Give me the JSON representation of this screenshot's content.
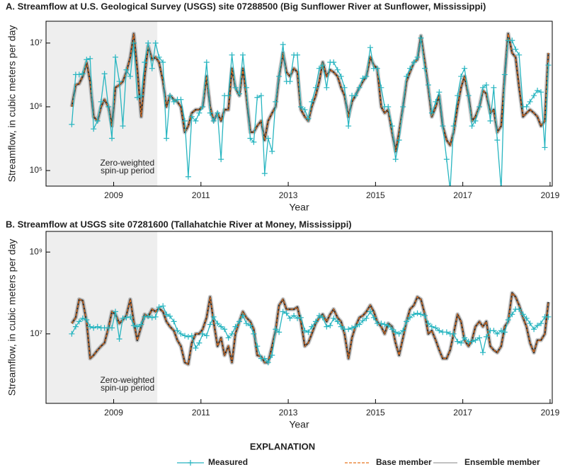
{
  "chart_data": [
    {
      "type": "line",
      "title": "A. Streamflow at U.S. Geological Survey (USGS) site 07288500 (Big Sunflower River at Sunflower, Mississippi)",
      "xlabel": "Year",
      "ylabel": "Streamflow, in cubic meters per day",
      "log_y": true,
      "xlim": [
        2007.45,
        2019.05
      ],
      "xticks": [
        2009,
        2011,
        2013,
        2015,
        2017,
        2019
      ],
      "ylim": [
        57000,
        22000000
      ],
      "yticks": [
        {
          "value": 100000,
          "label": "10⁵"
        },
        {
          "value": 1000000,
          "label": "10⁶"
        },
        {
          "value": 10000000,
          "label": "10⁷"
        }
      ],
      "shaded": {
        "xlim": [
          2007.45,
          2010
        ],
        "label": [
          "Zero-weighted",
          "spin-up period"
        ]
      },
      "x": [
        2008.04,
        2008.13,
        2008.21,
        2008.29,
        2008.38,
        2008.46,
        2008.54,
        2008.63,
        2008.71,
        2008.79,
        2008.88,
        2008.96,
        2009.04,
        2009.13,
        2009.21,
        2009.29,
        2009.38,
        2009.46,
        2009.54,
        2009.63,
        2009.71,
        2009.79,
        2009.88,
        2009.96,
        2010.04,
        2010.13,
        2010.21,
        2010.29,
        2010.38,
        2010.46,
        2010.54,
        2010.63,
        2010.71,
        2010.79,
        2010.88,
        2010.96,
        2011.04,
        2011.13,
        2011.21,
        2011.29,
        2011.38,
        2011.46,
        2011.54,
        2011.63,
        2011.71,
        2011.79,
        2011.88,
        2011.96,
        2012.04,
        2012.13,
        2012.21,
        2012.29,
        2012.38,
        2012.46,
        2012.54,
        2012.63,
        2012.71,
        2012.79,
        2012.88,
        2012.96,
        2013.04,
        2013.13,
        2013.21,
        2013.29,
        2013.38,
        2013.46,
        2013.54,
        2013.63,
        2013.71,
        2013.79,
        2013.88,
        2013.96,
        2014.04,
        2014.13,
        2014.21,
        2014.29,
        2014.38,
        2014.46,
        2014.54,
        2014.63,
        2014.71,
        2014.79,
        2014.88,
        2014.96,
        2015.04,
        2015.13,
        2015.21,
        2015.29,
        2015.38,
        2015.46,
        2015.54,
        2015.63,
        2015.71,
        2015.79,
        2015.88,
        2015.96,
        2016.04,
        2016.13,
        2016.21,
        2016.29,
        2016.38,
        2016.46,
        2016.54,
        2016.63,
        2016.71,
        2016.79,
        2016.88,
        2016.96,
        2017.04,
        2017.13,
        2017.21,
        2017.29,
        2017.38,
        2017.46,
        2017.54,
        2017.63,
        2017.71,
        2017.79,
        2017.88,
        2017.96,
        2018.04,
        2018.13,
        2018.21,
        2018.29,
        2018.38,
        2018.46,
        2018.54,
        2018.63,
        2018.71,
        2018.79,
        2018.88,
        2018.96
      ],
      "series": [
        {
          "values": [
            530000.0,
            3200000.0,
            3200000.0,
            3300000.0,
            5500000.0,
            5700000.0,
            450000.0,
            600000.0,
            1200000.0,
            3300000.0,
            1000000.0,
            320000.0,
            6000000.0,
            2500000.0,
            500000.0,
            3800000.0,
            3000000.0,
            10000000.0,
            1400000.0,
            1500000.0,
            5000000.0,
            10000000.0,
            4000000.0,
            10000000.0,
            6000000.0,
            5000000.0,
            320000.0,
            1500000.0,
            1200000.0,
            1300000.0,
            1300000.0,
            600000.0,
            80000.0,
            700000.0,
            600000.0,
            800000.0,
            1000000.0,
            5000000.0,
            800000.0,
            600000.0,
            800000.0,
            150000.0,
            1500000.0,
            1500000.0,
            6500000.0,
            2000000.0,
            1600000.0,
            6500000.0,
            2000000.0,
            320000.0,
            280000.0,
            1400000.0,
            1500000.0,
            90000.0,
            320000.0,
            200000.0,
            1200000.0,
            3000000.0,
            9500000.0,
            2500000.0,
            2500000.0,
            6500000.0,
            6500000.0,
            1000000.0,
            900000.0,
            650000.0,
            1200000.0,
            2000000.0,
            4000000.0,
            4500000.0,
            2000000.0,
            5000000.0,
            5000000.0,
            3800000.0,
            3000000.0,
            2000000.0,
            500000.0,
            1500000.0,
            1500000.0,
            2000000.0,
            2800000.0,
            3000000.0,
            8500000.0,
            4000000.0,
            4000000.0,
            2000000.0,
            1000000.0,
            1000000.0,
            500000.0,
            150000.0,
            300000.0,
            1000000.0,
            3000000.0,
            4000000.0,
            5000000.0,
            6000000.0,
            12000000.0,
            4000000.0,
            2200000.0,
            800000.0,
            1200000.0,
            1700000.0,
            500000.0,
            150000.0,
            50000.0,
            500000.0,
            1500000.0,
            3000000.0,
            4000000.0,
            1500000.0,
            500000.0,
            600000.0,
            1000000.0,
            2000000.0,
            2200000.0,
            600000.0,
            2000000.0,
            300000.0,
            50000.0,
            3200000.0,
            11000000.0,
            11000000.0,
            8000000.0,
            6500000.0,
            1000000.0,
            1000000.0,
            1200000.0,
            1500000.0,
            1800000.0,
            1700000.0,
            230000.0,
            4500000.0
          ]
        },
        {
          "values": [
            1000000.0,
            2200000.0,
            2300000.0,
            3000000.0,
            5000000.0,
            2500000.0,
            700000.0,
            600000.0,
            1000000.0,
            1300000.0,
            1000000.0,
            500000.0,
            2000000.0,
            2200000.0,
            2500000.0,
            3500000.0,
            6000000.0,
            14000000.0,
            4000000.0,
            700000.0,
            3000000.0,
            9000000.0,
            5500000.0,
            6000000.0,
            5000000.0,
            2500000.0,
            1000000.0,
            1500000.0,
            1300000.0,
            1200000.0,
            1000000.0,
            400000.0,
            500000.0,
            800000.0,
            900000.0,
            900000.0,
            1000000.0,
            3000000.0,
            1000000.0,
            600000.0,
            800000.0,
            600000.0,
            900000.0,
            900000.0,
            4000000.0,
            2000000.0,
            1500000.0,
            4000000.0,
            1500000.0,
            400000.0,
            400000.0,
            500000.0,
            600000.0,
            300000.0,
            600000.0,
            800000.0,
            1000000.0,
            3000000.0,
            7000000.0,
            3500000.0,
            3000000.0,
            4000000.0,
            3500000.0,
            900000.0,
            700000.0,
            600000.0,
            1000000.0,
            1500000.0,
            2500000.0,
            5000000.0,
            3000000.0,
            3800000.0,
            3500000.0,
            3000000.0,
            2000000.0,
            1500000.0,
            700000.0,
            1200000.0,
            1500000.0,
            2000000.0,
            2500000.0,
            3000000.0,
            6000000.0,
            4500000.0,
            4000000.0,
            1000000.0,
            800000.0,
            900000.0,
            400000.0,
            200000.0,
            400000.0,
            1000000.0,
            2500000.0,
            3500000.0,
            5000000.0,
            5500000.0,
            13000000.0,
            5000000.0,
            2000000.0,
            700000.0,
            1000000.0,
            1500000.0,
            500000.0,
            300000.0,
            250000.0,
            400000.0,
            1000000.0,
            2000000.0,
            3000000.0,
            1500000.0,
            600000.0,
            700000.0,
            1000000.0,
            1800000.0,
            1600000.0,
            800000.0,
            900000.0,
            400000.0,
            500000.0,
            3000000.0,
            14000000.0,
            7000000.0,
            6000000.0,
            2000000.0,
            700000.0,
            800000.0,
            900000.0,
            800000.0,
            700000.0,
            500000.0,
            600000.0,
            7000000.0
          ]
        }
      ]
    },
    {
      "type": "line",
      "title": "B. Streamflow at USGS site 07281600 (Tallahatchie River at Money, Mississippi)",
      "xlabel": "Year",
      "ylabel": "Streamflow, in cubic meters per day",
      "log_y": true,
      "xlim": [
        2007.45,
        2019.05
      ],
      "xticks": [
        2009,
        2011,
        2013,
        2015,
        2017,
        2019
      ],
      "ylim": [
        200000,
        3200000000
      ],
      "yticks": [
        {
          "value": 10000000,
          "label": "10⁷"
        },
        {
          "value": 1000000000,
          "label": "10⁹"
        }
      ],
      "shaded": {
        "xlim": [
          2007.45,
          2010
        ],
        "label": [
          "Zero-weighted",
          "spin-up period"
        ]
      },
      "x": [
        2008.04,
        2008.13,
        2008.21,
        2008.29,
        2008.38,
        2008.46,
        2008.54,
        2008.63,
        2008.71,
        2008.79,
        2008.88,
        2008.96,
        2009.04,
        2009.13,
        2009.21,
        2009.29,
        2009.38,
        2009.46,
        2009.54,
        2009.63,
        2009.71,
        2009.79,
        2009.88,
        2009.96,
        2010.04,
        2010.13,
        2010.21,
        2010.29,
        2010.38,
        2010.46,
        2010.54,
        2010.63,
        2010.71,
        2010.79,
        2010.88,
        2010.96,
        2011.04,
        2011.13,
        2011.21,
        2011.29,
        2011.38,
        2011.46,
        2011.54,
        2011.63,
        2011.71,
        2011.79,
        2011.88,
        2011.96,
        2012.04,
        2012.13,
        2012.21,
        2012.29,
        2012.38,
        2012.46,
        2012.54,
        2012.63,
        2012.71,
        2012.79,
        2012.88,
        2012.96,
        2013.04,
        2013.13,
        2013.21,
        2013.29,
        2013.38,
        2013.46,
        2013.54,
        2013.63,
        2013.71,
        2013.79,
        2013.88,
        2013.96,
        2014.04,
        2014.13,
        2014.21,
        2014.29,
        2014.38,
        2014.46,
        2014.54,
        2014.63,
        2014.71,
        2014.79,
        2014.88,
        2014.96,
        2015.04,
        2015.13,
        2015.21,
        2015.29,
        2015.38,
        2015.46,
        2015.54,
        2015.63,
        2015.71,
        2015.79,
        2015.88,
        2015.96,
        2016.04,
        2016.13,
        2016.21,
        2016.29,
        2016.38,
        2016.46,
        2016.54,
        2016.63,
        2016.71,
        2016.79,
        2016.88,
        2016.96,
        2017.04,
        2017.13,
        2017.21,
        2017.29,
        2017.38,
        2017.46,
        2017.54,
        2017.63,
        2017.71,
        2017.79,
        2017.88,
        2017.96,
        2018.04,
        2018.13,
        2018.21,
        2018.29,
        2018.38,
        2018.46,
        2018.54,
        2018.63,
        2018.71,
        2018.79,
        2018.88,
        2018.96
      ],
      "series": [
        {
          "values": [
            10000000.0,
            15000000.0,
            20000000.0,
            24000000.0,
            22000000.0,
            15000000.0,
            14000000.0,
            15000000.0,
            14000000.0,
            14000000.0,
            14000000.0,
            14000000.0,
            35000000.0,
            7500000.0,
            24000000.0,
            25000000.0,
            26000000.0,
            16000000.0,
            15000000.0,
            17000000.0,
            26000000.0,
            27000000.0,
            25000000.0,
            26000000.0,
            45000000.0,
            48000000.0,
            30000000.0,
            27000000.0,
            20000000.0,
            12000000.0,
            10000000.0,
            9000000.0,
            8500000.0,
            9000000.0,
            4500000.0,
            6000000.0,
            10000000.0,
            9000000.0,
            17000000.0,
            26000000.0,
            18000000.0,
            15000000.0,
            13000000.0,
            8000000.0,
            10000000.0,
            15000000.0,
            20000000.0,
            28000000.0,
            18000000.0,
            16000000.0,
            10000000.0,
            5000000.0,
            2500000.0,
            2500000.0,
            2000000.0,
            3000000.0,
            13000000.0,
            11000000.0,
            35000000.0,
            32000000.0,
            24000000.0,
            28000000.0,
            24000000.0,
            25000000.0,
            12000000.0,
            11000000.0,
            15000000.0,
            20000000.0,
            28000000.0,
            25000000.0,
            15000000.0,
            16000000.0,
            24000000.0,
            20000000.0,
            15000000.0,
            13000000.0,
            13000000.0,
            14000000.0,
            15000000.0,
            17000000.0,
            21000000.0,
            24000000.0,
            35000000.0,
            25000000.0,
            18000000.0,
            18000000.0,
            17000000.0,
            16000000.0,
            13000000.0,
            11000000.0,
            10000000.0,
            12000000.0,
            20000000.0,
            25000000.0,
            30000000.0,
            32000000.0,
            30000000.0,
            28000000.0,
            18000000.0,
            15000000.0,
            14000000.0,
            12000000.0,
            11000000.0,
            11000000.0,
            10000000.0,
            10000000.0,
            6500000.0,
            6000000.0,
            8000000.0,
            6500000.0,
            6500000.0,
            7000000.0,
            8000000.0,
            3500000.0,
            8500000.0,
            12000000.0,
            12000000.0,
            10000000.0,
            12000000.0,
            11000000.0,
            22000000.0,
            30000000.0,
            40000000.0,
            40000000.0,
            30000000.0,
            24000000.0,
            18000000.0,
            13000000.0,
            16000000.0,
            18000000.0,
            26000000.0,
            26000000.0
          ]
        },
        {
          "values": [
            18000000.0,
            25000000.0,
            70000000.0,
            65000000.0,
            20000000.0,
            2500000.0,
            3000000.0,
            4000000.0,
            5000000.0,
            6000000.0,
            14000000.0,
            35000000.0,
            30000000.0,
            18000000.0,
            22000000.0,
            28000000.0,
            70000000.0,
            20000000.0,
            7000000.0,
            15000000.0,
            30000000.0,
            26000000.0,
            40000000.0,
            35000000.0,
            42000000.0,
            35000000.0,
            20000000.0,
            15000000.0,
            12000000.0,
            7000000.0,
            5000000.0,
            2000000.0,
            1800000.0,
            6000000.0,
            10000000.0,
            10000000.0,
            13000000.0,
            25000000.0,
            80000000.0,
            20000000.0,
            5000000.0,
            8000000.0,
            3000000.0,
            5000000.0,
            2000000.0,
            10000000.0,
            20000000.0,
            35000000.0,
            25000000.0,
            20000000.0,
            13000000.0,
            3000000.0,
            2800000.0,
            2000000.0,
            2000000.0,
            5000000.0,
            12000000.0,
            50000000.0,
            70000000.0,
            40000000.0,
            40000000.0,
            40000000.0,
            45000000.0,
            20000000.0,
            5000000.0,
            6000000.0,
            10000000.0,
            18000000.0,
            25000000.0,
            30000000.0,
            20000000.0,
            30000000.0,
            40000000.0,
            25000000.0,
            20000000.0,
            10000000.0,
            2500000.0,
            8000000.0,
            15000000.0,
            25000000.0,
            28000000.0,
            35000000.0,
            50000000.0,
            35000000.0,
            20000000.0,
            15000000.0,
            10000000.0,
            18000000.0,
            15000000.0,
            6000000.0,
            3000000.0,
            8000000.0,
            20000000.0,
            40000000.0,
            50000000.0,
            80000000.0,
            70000000.0,
            30000000.0,
            10000000.0,
            12000000.0,
            7000000.0,
            4000000.0,
            2500000.0,
            2500000.0,
            4000000.0,
            10000000.0,
            30000000.0,
            20000000.0,
            7000000.0,
            5000000.0,
            7000000.0,
            15000000.0,
            20000000.0,
            15000000.0,
            20000000.0,
            5000000.0,
            4000000.0,
            3500000.0,
            5000000.0,
            15000000.0,
            20000000.0,
            100000000.0,
            80000000.0,
            50000000.0,
            25000000.0,
            15000000.0,
            6000000.0,
            3500000.0,
            7000000.0,
            7000000.0,
            10000000.0,
            60000000.0
          ]
        }
      ]
    }
  ],
  "legend": {
    "title": "EXPLANATION",
    "items": [
      {
        "name": "Measured",
        "color": "#27b5c0"
      },
      {
        "name": "Base member",
        "color": "#e8731f"
      },
      {
        "name": "Ensemble member",
        "color": "#9a9a9a"
      }
    ]
  }
}
